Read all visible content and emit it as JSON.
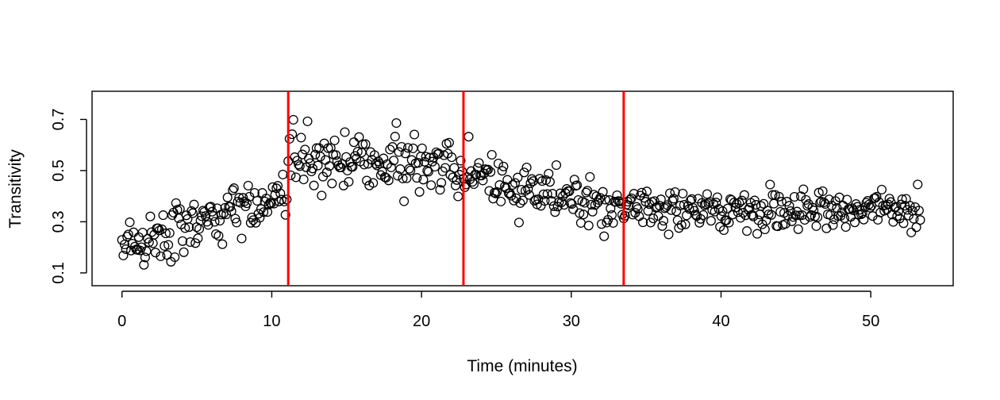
{
  "chart_data": {
    "type": "scatter",
    "xlabel": "Time (minutes)",
    "ylabel": "Transitivity",
    "xlim": [
      -2,
      55.5
    ],
    "ylim": [
      0.05,
      0.81
    ],
    "x_ticks": [
      0,
      10,
      20,
      30,
      40,
      50
    ],
    "y_ticks": [
      0.1,
      0.3,
      0.5,
      0.7
    ],
    "x_tick_labels": [
      "0",
      "10",
      "20",
      "30",
      "40",
      "50"
    ],
    "y_tick_labels": [
      "0.1",
      "0.3",
      "0.5",
      "0.7"
    ],
    "vertical_lines": [
      11.1,
      22.8,
      33.5
    ],
    "vertical_line_color": "#ff0000",
    "marker": "open-circle",
    "n_points": 620,
    "segments": [
      {
        "x_start": 0.0,
        "x_end": 11.0,
        "y_start": 0.2,
        "y_end": 0.42,
        "spread": 0.12
      },
      {
        "x_start": 11.1,
        "x_end": 22.7,
        "y_start": 0.56,
        "y_end": 0.5,
        "spread": 0.13
      },
      {
        "x_start": 22.8,
        "x_end": 33.4,
        "y_start": 0.5,
        "y_end": 0.34,
        "spread": 0.1
      },
      {
        "x_start": 33.5,
        "x_end": 53.3,
        "y_start": 0.35,
        "y_end": 0.35,
        "spread": 0.08
      }
    ],
    "grid": false,
    "legend": "none"
  }
}
